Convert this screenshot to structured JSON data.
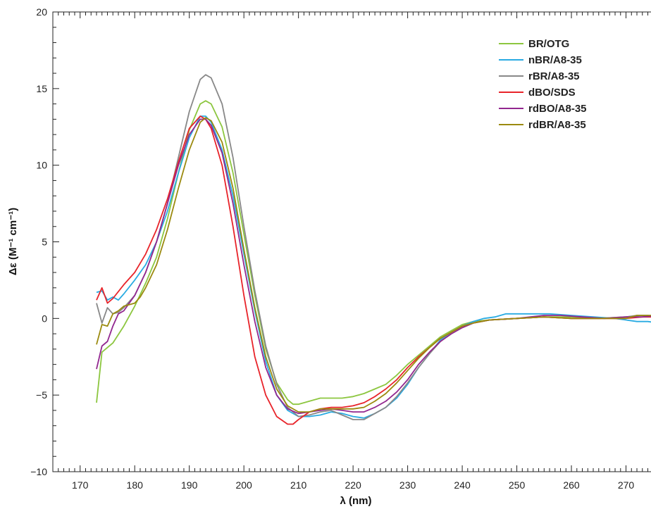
{
  "chart_data": {
    "type": "line",
    "title": "",
    "xlabel": "λ (nm)",
    "ylabel": "Δε (M⁻¹ cm⁻¹)",
    "xlim": [
      165,
      276
    ],
    "ylim": [
      -10,
      20
    ],
    "x_ticks": [
      170,
      180,
      190,
      200,
      210,
      220,
      230,
      240,
      250,
      260,
      270
    ],
    "y_ticks": [
      -10,
      -5,
      0,
      5,
      10,
      15,
      20
    ],
    "y_tick_labels": [
      "−10",
      "−5",
      "0",
      "5",
      "10",
      "15",
      "20"
    ],
    "grid": false,
    "legend_position": "top-right",
    "series": [
      {
        "name": "BR/OTG",
        "color": "#8cc63f",
        "points": [
          [
            173,
            -5.5
          ],
          [
            174,
            -2.2
          ],
          [
            176,
            -1.6
          ],
          [
            178,
            -0.5
          ],
          [
            180,
            0.8
          ],
          [
            182,
            2.3
          ],
          [
            184,
            4.0
          ],
          [
            186,
            6.5
          ],
          [
            188,
            9.5
          ],
          [
            190,
            12.3
          ],
          [
            192,
            14.0
          ],
          [
            193,
            14.2
          ],
          [
            194,
            14.0
          ],
          [
            196,
            12.5
          ],
          [
            198,
            9.5
          ],
          [
            200,
            5.5
          ],
          [
            202,
            1.5
          ],
          [
            204,
            -2.0
          ],
          [
            206,
            -4.2
          ],
          [
            208,
            -5.3
          ],
          [
            209,
            -5.6
          ],
          [
            210,
            -5.6
          ],
          [
            212,
            -5.4
          ],
          [
            214,
            -5.2
          ],
          [
            216,
            -5.2
          ],
          [
            218,
            -5.2
          ],
          [
            220,
            -5.1
          ],
          [
            222,
            -4.9
          ],
          [
            224,
            -4.6
          ],
          [
            226,
            -4.3
          ],
          [
            228,
            -3.7
          ],
          [
            230,
            -3.0
          ],
          [
            232,
            -2.4
          ],
          [
            234,
            -1.8
          ],
          [
            236,
            -1.2
          ],
          [
            238,
            -0.8
          ],
          [
            240,
            -0.4
          ],
          [
            242,
            -0.2
          ],
          [
            245,
            -0.1
          ],
          [
            250,
            0.0
          ],
          [
            255,
            0.1
          ],
          [
            260,
            0.1
          ],
          [
            265,
            0.0
          ],
          [
            270,
            0.1
          ],
          [
            273,
            0.2
          ],
          [
            276,
            0.1
          ]
        ]
      },
      {
        "name": "nBR/A8-35",
        "color": "#29abe2",
        "points": [
          [
            173,
            1.7
          ],
          [
            174,
            1.8
          ],
          [
            175,
            1.2
          ],
          [
            176,
            1.4
          ],
          [
            177,
            1.2
          ],
          [
            178,
            1.6
          ],
          [
            180,
            2.5
          ],
          [
            182,
            3.5
          ],
          [
            184,
            5.0
          ],
          [
            186,
            7.0
          ],
          [
            188,
            9.5
          ],
          [
            190,
            11.8
          ],
          [
            192,
            13.2
          ],
          [
            193,
            13.2
          ],
          [
            194,
            12.8
          ],
          [
            196,
            11.0
          ],
          [
            198,
            8.0
          ],
          [
            200,
            4.2
          ],
          [
            202,
            0.5
          ],
          [
            204,
            -2.8
          ],
          [
            206,
            -5.0
          ],
          [
            208,
            -6.0
          ],
          [
            210,
            -6.4
          ],
          [
            212,
            -6.4
          ],
          [
            214,
            -6.3
          ],
          [
            216,
            -6.1
          ],
          [
            218,
            -6.2
          ],
          [
            220,
            -6.4
          ],
          [
            222,
            -6.5
          ],
          [
            224,
            -6.2
          ],
          [
            226,
            -5.8
          ],
          [
            228,
            -5.2
          ],
          [
            230,
            -4.3
          ],
          [
            232,
            -3.2
          ],
          [
            234,
            -2.3
          ],
          [
            236,
            -1.4
          ],
          [
            238,
            -0.9
          ],
          [
            240,
            -0.5
          ],
          [
            242,
            -0.2
          ],
          [
            244,
            0.0
          ],
          [
            246,
            0.1
          ],
          [
            248,
            0.3
          ],
          [
            250,
            0.3
          ],
          [
            252,
            0.3
          ],
          [
            256,
            0.3
          ],
          [
            260,
            0.2
          ],
          [
            264,
            0.1
          ],
          [
            268,
            0.0
          ],
          [
            270,
            -0.1
          ],
          [
            272,
            -0.2
          ],
          [
            274,
            -0.2
          ],
          [
            276,
            -0.3
          ]
        ]
      },
      {
        "name": "rBR/A8-35",
        "color": "#888888",
        "points": [
          [
            173,
            1.0
          ],
          [
            174,
            -0.3
          ],
          [
            175,
            0.7
          ],
          [
            176,
            0.3
          ],
          [
            177,
            0.4
          ],
          [
            178,
            0.7
          ],
          [
            180,
            1.5
          ],
          [
            182,
            3.0
          ],
          [
            184,
            5.0
          ],
          [
            186,
            7.5
          ],
          [
            188,
            10.5
          ],
          [
            190,
            13.5
          ],
          [
            192,
            15.6
          ],
          [
            193,
            15.9
          ],
          [
            194,
            15.7
          ],
          [
            196,
            14.0
          ],
          [
            198,
            10.5
          ],
          [
            200,
            6.0
          ],
          [
            202,
            1.8
          ],
          [
            204,
            -1.8
          ],
          [
            206,
            -4.3
          ],
          [
            208,
            -5.8
          ],
          [
            210,
            -6.4
          ],
          [
            212,
            -6.3
          ],
          [
            214,
            -6.1
          ],
          [
            216,
            -6.0
          ],
          [
            218,
            -6.3
          ],
          [
            220,
            -6.6
          ],
          [
            222,
            -6.6
          ],
          [
            224,
            -6.2
          ],
          [
            226,
            -5.8
          ],
          [
            228,
            -5.1
          ],
          [
            230,
            -4.2
          ],
          [
            232,
            -3.2
          ],
          [
            234,
            -2.3
          ],
          [
            236,
            -1.5
          ],
          [
            238,
            -1.0
          ],
          [
            240,
            -0.6
          ],
          [
            242,
            -0.3
          ],
          [
            245,
            -0.1
          ],
          [
            250,
            0.0
          ],
          [
            255,
            0.1
          ],
          [
            260,
            0.0
          ],
          [
            265,
            0.0
          ],
          [
            270,
            0.1
          ],
          [
            272,
            0.2
          ],
          [
            274,
            0.2
          ],
          [
            276,
            0.1
          ]
        ]
      },
      {
        "name": "dBO/SDS",
        "color": "#e8242a",
        "points": [
          [
            173,
            1.2
          ],
          [
            174,
            2.0
          ],
          [
            175,
            1.0
          ],
          [
            176,
            1.3
          ],
          [
            178,
            2.2
          ],
          [
            180,
            3.0
          ],
          [
            182,
            4.2
          ],
          [
            184,
            5.8
          ],
          [
            186,
            7.8
          ],
          [
            188,
            10.2
          ],
          [
            190,
            12.4
          ],
          [
            192,
            13.2
          ],
          [
            193,
            13.0
          ],
          [
            194,
            12.4
          ],
          [
            196,
            10.0
          ],
          [
            198,
            6.0
          ],
          [
            200,
            1.5
          ],
          [
            202,
            -2.5
          ],
          [
            204,
            -5.0
          ],
          [
            206,
            -6.4
          ],
          [
            208,
            -6.9
          ],
          [
            209,
            -6.9
          ],
          [
            210,
            -6.6
          ],
          [
            212,
            -6.1
          ],
          [
            214,
            -5.9
          ],
          [
            216,
            -5.8
          ],
          [
            218,
            -5.8
          ],
          [
            220,
            -5.7
          ],
          [
            222,
            -5.5
          ],
          [
            224,
            -5.1
          ],
          [
            226,
            -4.6
          ],
          [
            228,
            -4.0
          ],
          [
            230,
            -3.2
          ],
          [
            232,
            -2.5
          ],
          [
            234,
            -1.9
          ],
          [
            236,
            -1.3
          ],
          [
            238,
            -0.9
          ],
          [
            240,
            -0.5
          ],
          [
            242,
            -0.3
          ],
          [
            245,
            -0.1
          ],
          [
            250,
            0.0
          ],
          [
            255,
            0.1
          ],
          [
            260,
            0.0
          ],
          [
            265,
            0.0
          ],
          [
            270,
            0.0
          ],
          [
            273,
            0.1
          ],
          [
            276,
            0.1
          ]
        ]
      },
      {
        "name": "rdBO/A8-35",
        "color": "#92278f",
        "points": [
          [
            173,
            -3.3
          ],
          [
            174,
            -1.8
          ],
          [
            175,
            -1.5
          ],
          [
            176,
            -0.5
          ],
          [
            177,
            0.3
          ],
          [
            178,
            0.5
          ],
          [
            180,
            1.5
          ],
          [
            182,
            3.0
          ],
          [
            184,
            5.0
          ],
          [
            186,
            7.5
          ],
          [
            188,
            10.0
          ],
          [
            190,
            12.0
          ],
          [
            192,
            13.0
          ],
          [
            193,
            13.0
          ],
          [
            194,
            12.6
          ],
          [
            196,
            10.8
          ],
          [
            198,
            7.5
          ],
          [
            200,
            3.5
          ],
          [
            202,
            -0.2
          ],
          [
            204,
            -3.2
          ],
          [
            206,
            -5.0
          ],
          [
            208,
            -5.9
          ],
          [
            210,
            -6.2
          ],
          [
            212,
            -6.1
          ],
          [
            214,
            -6.0
          ],
          [
            216,
            -5.9
          ],
          [
            218,
            -6.0
          ],
          [
            220,
            -6.1
          ],
          [
            222,
            -6.1
          ],
          [
            224,
            -5.8
          ],
          [
            226,
            -5.4
          ],
          [
            228,
            -4.8
          ],
          [
            230,
            -4.0
          ],
          [
            232,
            -3.0
          ],
          [
            234,
            -2.2
          ],
          [
            236,
            -1.5
          ],
          [
            238,
            -1.0
          ],
          [
            240,
            -0.6
          ],
          [
            242,
            -0.3
          ],
          [
            245,
            -0.1
          ],
          [
            250,
            0.0
          ],
          [
            255,
            0.2
          ],
          [
            258,
            0.2
          ],
          [
            262,
            0.1
          ],
          [
            266,
            0.0
          ],
          [
            270,
            0.1
          ],
          [
            273,
            0.1
          ],
          [
            276,
            0.2
          ]
        ]
      },
      {
        "name": "rdBR/A8-35",
        "color": "#9b8a0f",
        "points": [
          [
            173,
            -1.7
          ],
          [
            174,
            -0.4
          ],
          [
            175,
            -0.5
          ],
          [
            176,
            0.3
          ],
          [
            177,
            0.5
          ],
          [
            178,
            0.8
          ],
          [
            180,
            1.0
          ],
          [
            181,
            1.4
          ],
          [
            182,
            2.0
          ],
          [
            184,
            3.5
          ],
          [
            186,
            5.8
          ],
          [
            188,
            8.5
          ],
          [
            190,
            11.0
          ],
          [
            192,
            12.8
          ],
          [
            193,
            13.1
          ],
          [
            194,
            12.9
          ],
          [
            196,
            11.5
          ],
          [
            198,
            8.5
          ],
          [
            200,
            4.5
          ],
          [
            202,
            0.7
          ],
          [
            204,
            -2.5
          ],
          [
            206,
            -4.6
          ],
          [
            208,
            -5.7
          ],
          [
            210,
            -6.1
          ],
          [
            212,
            -6.1
          ],
          [
            214,
            -5.9
          ],
          [
            216,
            -5.9
          ],
          [
            218,
            -5.9
          ],
          [
            220,
            -5.9
          ],
          [
            222,
            -5.8
          ],
          [
            224,
            -5.4
          ],
          [
            226,
            -4.9
          ],
          [
            228,
            -4.2
          ],
          [
            230,
            -3.4
          ],
          [
            232,
            -2.6
          ],
          [
            234,
            -1.9
          ],
          [
            236,
            -1.3
          ],
          [
            238,
            -0.9
          ],
          [
            240,
            -0.5
          ],
          [
            242,
            -0.3
          ],
          [
            245,
            -0.1
          ],
          [
            250,
            0.0
          ],
          [
            255,
            0.1
          ],
          [
            260,
            0.0
          ],
          [
            265,
            0.0
          ],
          [
            270,
            0.0
          ],
          [
            272,
            0.2
          ],
          [
            274,
            0.2
          ],
          [
            276,
            0.2
          ]
        ]
      }
    ]
  }
}
